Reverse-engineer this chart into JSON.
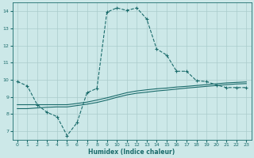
{
  "xlabel": "Humidex (Indice chaleur)",
  "bg_color": "#cce8e8",
  "grid_color": "#aacccc",
  "line_color": "#1a6b6b",
  "xlim": [
    -0.5,
    23.5
  ],
  "ylim": [
    6.5,
    14.5
  ],
  "xticks": [
    0,
    1,
    2,
    3,
    4,
    5,
    6,
    7,
    8,
    9,
    10,
    11,
    12,
    13,
    14,
    15,
    16,
    17,
    18,
    19,
    20,
    21,
    22,
    23
  ],
  "yticks": [
    7,
    8,
    9,
    10,
    11,
    12,
    13,
    14
  ],
  "line1_x": [
    0,
    1,
    2,
    3,
    4,
    5,
    6,
    7,
    8,
    9,
    10,
    11,
    12,
    13,
    14,
    15,
    16,
    17,
    18,
    19,
    20,
    21,
    22,
    23
  ],
  "line1_y": [
    9.9,
    9.65,
    8.55,
    8.1,
    7.85,
    6.75,
    7.5,
    9.25,
    9.5,
    13.95,
    14.2,
    14.05,
    14.2,
    13.55,
    11.8,
    11.45,
    10.5,
    10.5,
    9.95,
    9.9,
    9.7,
    9.55,
    9.55,
    9.55
  ],
  "line2_x": [
    0,
    1,
    2,
    3,
    4,
    5,
    6,
    7,
    8,
    9,
    10,
    11,
    12,
    13,
    14,
    15,
    16,
    17,
    18,
    19,
    20,
    21,
    22,
    23
  ],
  "line2_y": [
    8.55,
    8.55,
    8.55,
    8.55,
    8.55,
    8.55,
    8.62,
    8.7,
    8.82,
    8.95,
    9.1,
    9.25,
    9.35,
    9.42,
    9.48,
    9.52,
    9.58,
    9.62,
    9.67,
    9.72,
    9.77,
    9.82,
    9.85,
    9.88
  ],
  "line3_x": [
    0,
    1,
    2,
    3,
    4,
    5,
    6,
    7,
    8,
    9,
    10,
    11,
    12,
    13,
    14,
    15,
    16,
    17,
    18,
    19,
    20,
    21,
    22,
    23
  ],
  "line3_y": [
    8.32,
    8.32,
    8.36,
    8.4,
    8.42,
    8.42,
    8.5,
    8.58,
    8.68,
    8.82,
    8.98,
    9.12,
    9.22,
    9.28,
    9.35,
    9.4,
    9.46,
    9.52,
    9.57,
    9.62,
    9.67,
    9.72,
    9.76,
    9.78
  ]
}
